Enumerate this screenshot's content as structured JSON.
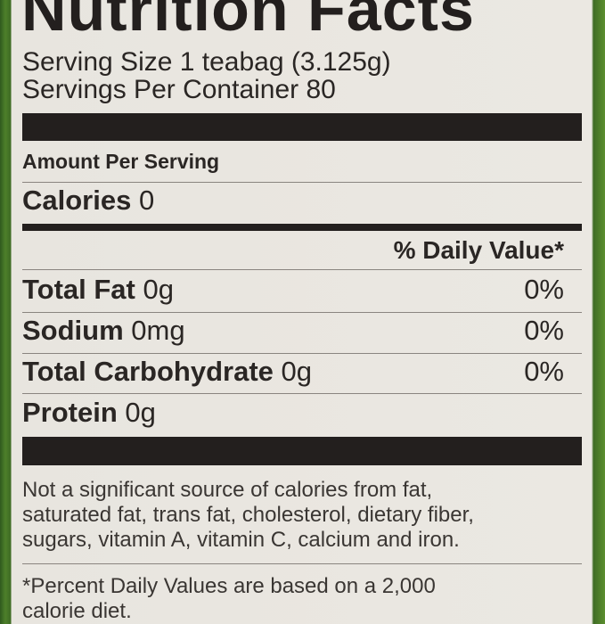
{
  "title": "Nutrition Facts",
  "serving_size": "Serving Size 1 teabag (3.125g)",
  "servings_per_container": "Servings Per Container 80",
  "amount_per_serving": "Amount Per Serving",
  "calories": {
    "label": "Calories",
    "value": "0"
  },
  "daily_value_header": "% Daily Value*",
  "nutrients": [
    {
      "label": "Total Fat",
      "amount": "0g",
      "dv": "0%"
    },
    {
      "label": "Sodium",
      "amount": "0mg",
      "dv": "0%"
    },
    {
      "label": "Total Carbohydrate",
      "amount": "0g",
      "dv": "0%"
    },
    {
      "label": "Protein",
      "amount": "0g",
      "dv": ""
    }
  ],
  "footnote": {
    "lines": [
      "Not a significant source of calories from fat,",
      "saturated fat, trans fat, cholesterol, dietary fiber,",
      "sugars, vitamin A, vitamin C, calcium and iron."
    ],
    "daily_values_note": [
      "*Percent Daily Values are based on a 2,000",
      "calorie diet."
    ]
  }
}
